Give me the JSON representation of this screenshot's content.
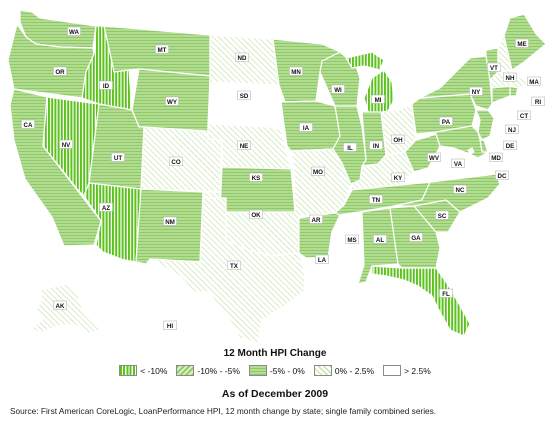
{
  "map": {
    "categories": [
      {
        "id": "lt-minus10",
        "label": "< -10%",
        "pattern": "vertical",
        "color": "#5cc31d",
        "bg": "#ffffff"
      },
      {
        "id": "minus10-minus5",
        "label": "-10% - -5%",
        "pattern": "diag-up",
        "color": "#8ccb5a",
        "bg": "#d9ecc8"
      },
      {
        "id": "minus5-0",
        "label": "-5% - 0%",
        "pattern": "horizontal",
        "color": "#8fc968",
        "bg": "#b4dd94"
      },
      {
        "id": "0-2.5",
        "label": "0% - 2.5%",
        "pattern": "diag-down",
        "color": "#c4e2a9",
        "bg": "#ffffff"
      },
      {
        "id": "gt-2.5",
        "label": "> 2.5%",
        "pattern": "none",
        "color": "#ffffff",
        "bg": "#ffffff"
      }
    ],
    "states": {
      "WA": "minus5-0",
      "OR": "minus5-0",
      "CA": "minus5-0",
      "NV": "lt-minus10",
      "ID": "lt-minus10",
      "MT": "minus5-0",
      "WY": "minus5-0",
      "UT": "minus5-0",
      "AZ": "lt-minus10",
      "CO": "0-2.5",
      "NM": "minus5-0",
      "ND": "0-2.5",
      "SD": "gt-2.5",
      "NE": "0-2.5",
      "KS": "minus5-0",
      "OK": "0-2.5",
      "TX": "0-2.5",
      "MN": "minus5-0",
      "IA": "minus5-0",
      "MO": "0-2.5",
      "AR": "minus5-0",
      "LA": "gt-2.5",
      "WI": "minus5-0",
      "IL": "minus5-0",
      "MI": "lt-minus10",
      "IN": "minus5-0",
      "OH": "0-2.5",
      "KY": "0-2.5",
      "TN": "minus5-0",
      "MS": "gt-2.5",
      "AL": "minus5-0",
      "GA": "minus5-0",
      "FL": "lt-minus10",
      "SC": "minus5-0",
      "NC": "minus5-0",
      "VA": "gt-2.5",
      "WV": "minus5-0",
      "PA": "minus5-0",
      "NY": "minus5-0",
      "VT": "minus5-0",
      "NH": "0-2.5",
      "ME": "minus5-0",
      "MA": "0-2.5",
      "RI": "minus5-0",
      "CT": "minus5-0",
      "NJ": "minus5-0",
      "DE": "minus5-0",
      "MD": "minus5-0",
      "DC": "gt-2.5",
      "AK": "0-2.5",
      "HI": "gt-2.5"
    }
  },
  "legend": {
    "title": "12 Month HPI Change",
    "items": [
      "< -10%",
      "-10% - -5%",
      "-5% - 0%",
      "0% - 2.5%",
      "> 2.5%"
    ]
  },
  "as_of": "As of December 2009",
  "source": "Source: First American CoreLogic, LoanPerformance HPI, 12 month change by state; single family combined series.",
  "colors": {
    "border": "#ffffff",
    "text": "#111111"
  }
}
